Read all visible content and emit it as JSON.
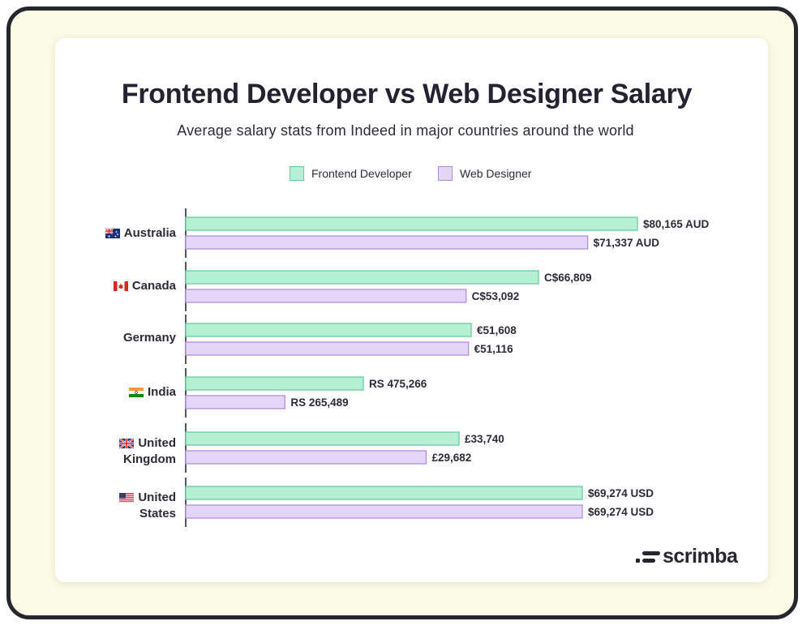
{
  "colors": {
    "frontend_fill": "#b6f0d4",
    "frontend_stroke": "#6ccaa2",
    "designer_fill": "#e3d6f8",
    "designer_stroke": "#b08fe0",
    "axis": "#2c2c36"
  },
  "chart_data": {
    "type": "bar",
    "orientation": "horizontal",
    "title": "Frontend Developer vs Web Designer Salary",
    "subtitle": "Average salary stats from Indeed in major countries around the world",
    "legend": [
      {
        "label": "Frontend Developer",
        "series": "frontend"
      },
      {
        "label": "Web Designer",
        "series": "designer"
      }
    ],
    "legend_placement": "top-center",
    "categories": [
      "Australia",
      "Canada",
      "Germany",
      "India",
      "United Kingdom",
      "United States"
    ],
    "category_lines": [
      [
        "Australia"
      ],
      [
        "Canada"
      ],
      [
        "Germany"
      ],
      [
        "India"
      ],
      [
        "United",
        "Kingdom"
      ],
      [
        "United",
        "States"
      ]
    ],
    "category_flags": [
      "au-flag",
      "ca-flag",
      "",
      "in-flag",
      "uk-flag",
      "us-flag"
    ],
    "series": [
      {
        "name": "Frontend Developer",
        "key": "frontend",
        "values": [
          80165,
          66809,
          51608,
          475266,
          33740,
          69274
        ],
        "labels": [
          "$80,165 AUD",
          "C$66,809",
          "€51,608",
          "RS 475,266",
          "£33,740",
          "$69,274 USD"
        ]
      },
      {
        "name": "Web Designer",
        "key": "designer",
        "values": [
          71337,
          53092,
          51116,
          265489,
          29682,
          69274
        ],
        "labels": [
          "$71,337 AUD",
          "C$53,092",
          "€51,116",
          "RS 265,489",
          "£29,682",
          "$69,274 USD"
        ]
      }
    ],
    "grid": false
  },
  "branding": {
    "logo_text": "scrimba"
  }
}
